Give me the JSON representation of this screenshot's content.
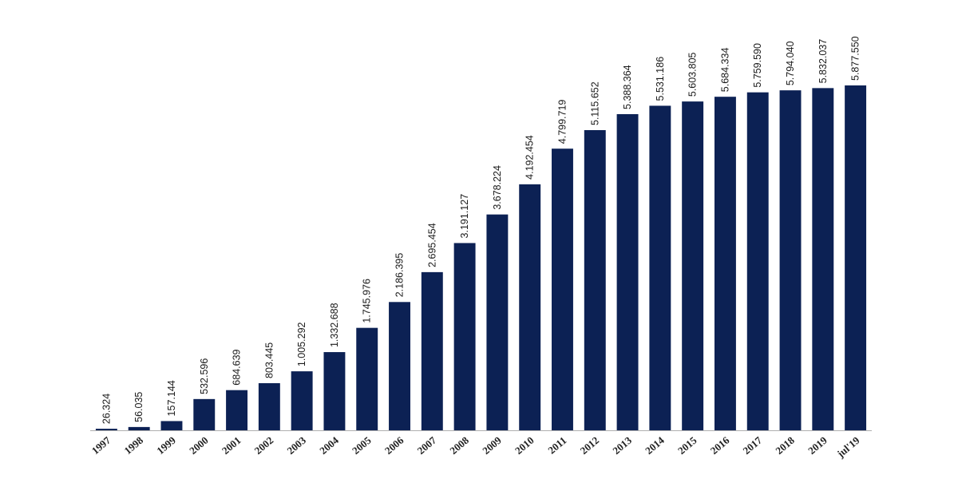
{
  "chart_data": {
    "type": "bar",
    "title": "",
    "xlabel": "",
    "ylabel": "",
    "categories": [
      "1997",
      "1998",
      "1999",
      "2000",
      "2001",
      "2002",
      "2003",
      "2004",
      "2005",
      "2006",
      "2007",
      "2008",
      "2009",
      "2010",
      "2011",
      "2012",
      "2013",
      "2014",
      "2015",
      "2016",
      "2017",
      "2018",
      "2019",
      "jul'19"
    ],
    "values": [
      26324,
      56035,
      157144,
      532596,
      684639,
      803445,
      1005292,
      1332688,
      1745976,
      2186395,
      2695454,
      3191127,
      3678224,
      4192454,
      4799719,
      5115652,
      5388364,
      5531186,
      5603805,
      5684334,
      5759590,
      5794040,
      5832037,
      5877550
    ],
    "value_labels": [
      "26.324",
      "56.035",
      "157.144",
      "532.596",
      "684.639",
      "803.445",
      "1.005.292",
      "1.332.688",
      "1.745.976",
      "2.186.395",
      "2.695.454",
      "3.191.127",
      "3.678.224",
      "4.192.454",
      "4.799.719",
      "5.115.652",
      "5.388.364",
      "5.531.186",
      "5.603.805",
      "5.684.334",
      "5.759.590",
      "5.794.040",
      "5.832.037",
      "5.877.550"
    ],
    "ylim": [
      0,
      5877550
    ],
    "grid": false,
    "legend": "none",
    "bar_color": "#0c2154",
    "axis_color": "#b0b0b0"
  }
}
